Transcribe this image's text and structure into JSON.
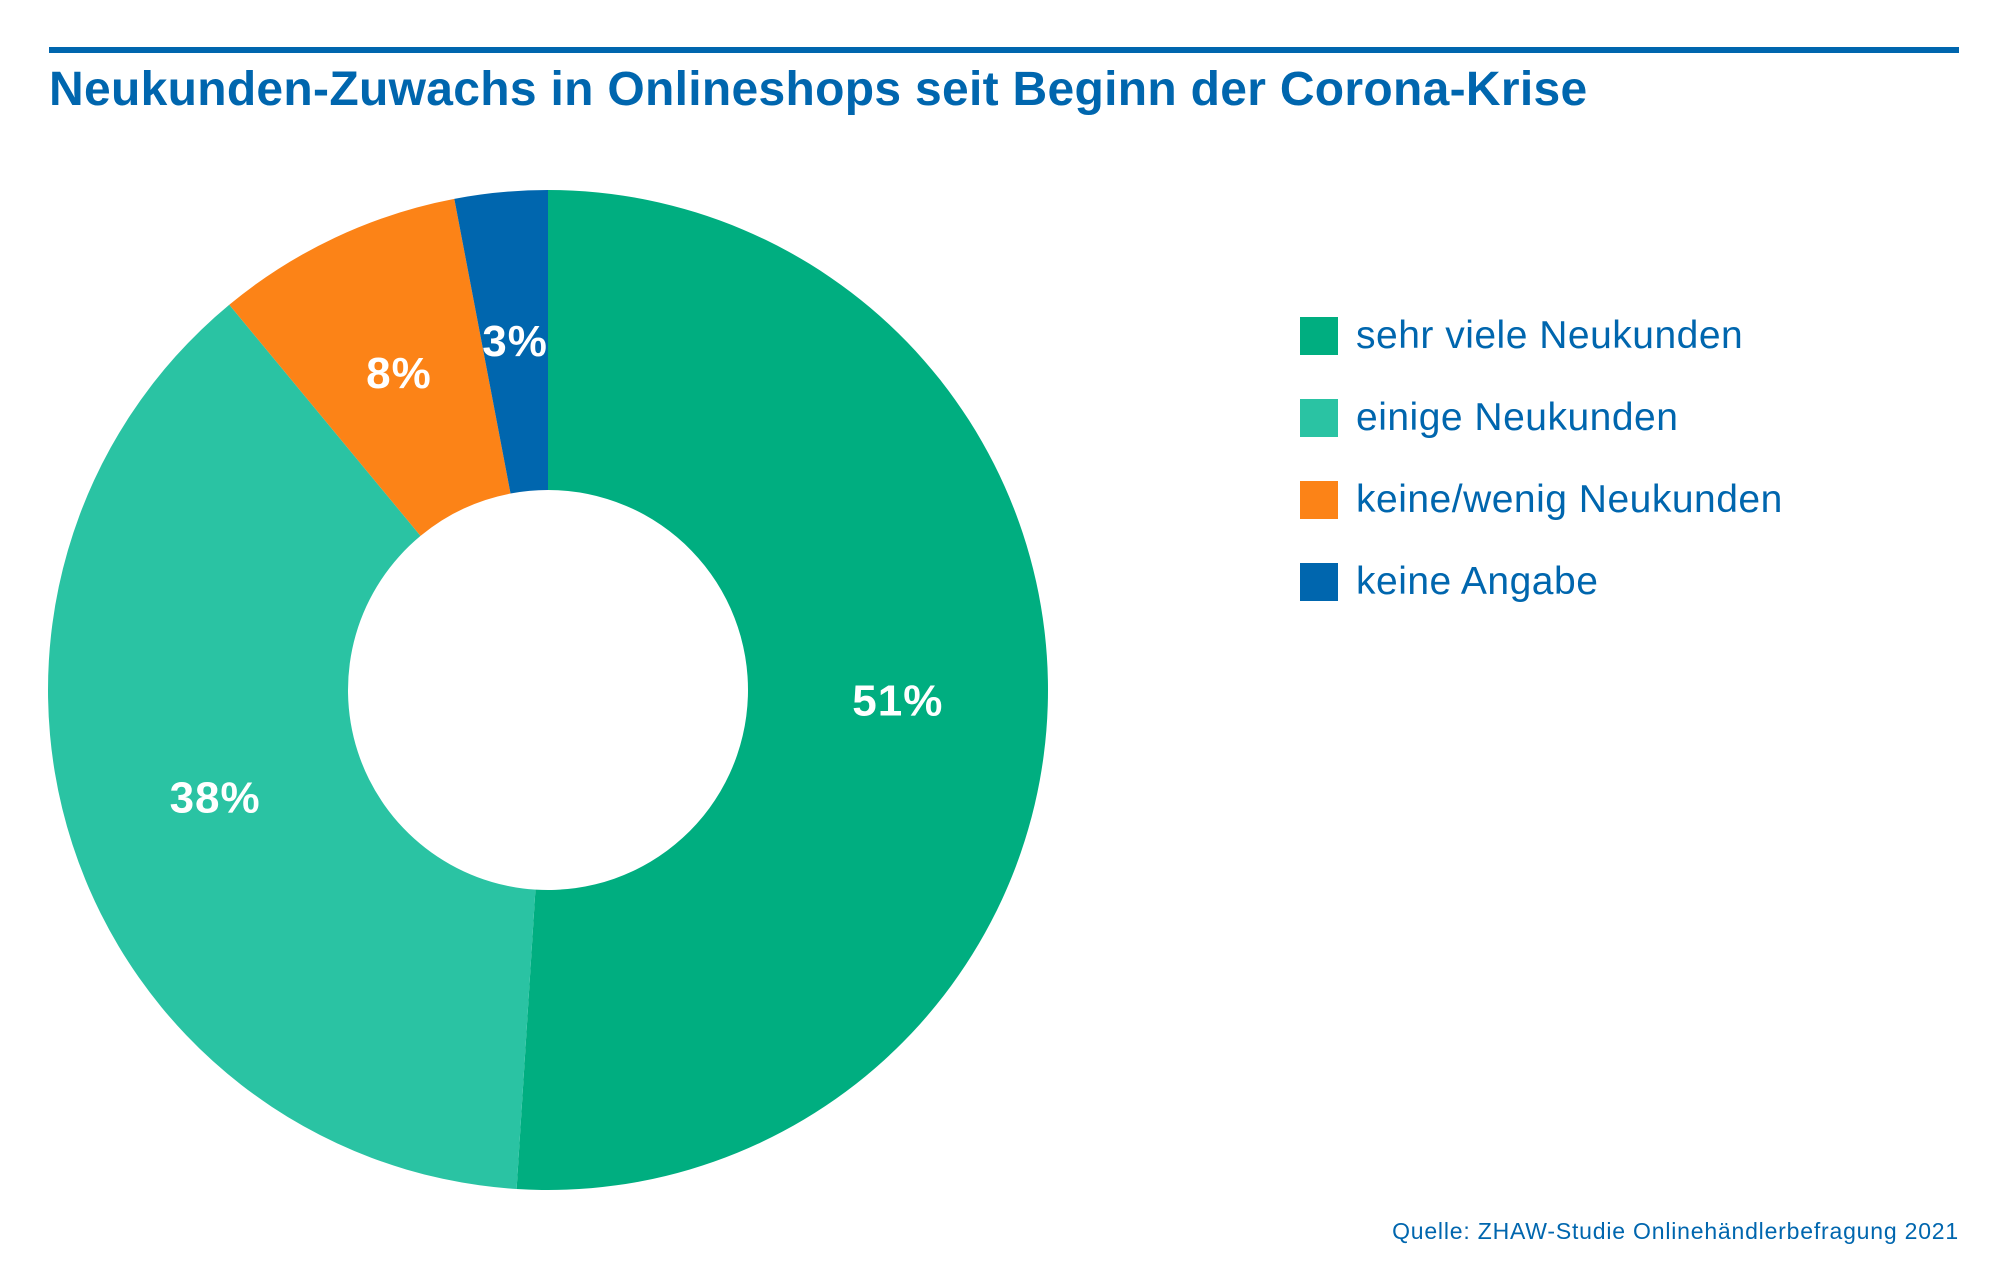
{
  "title": "Neukunden-Zuwachs in Onlineshops seit Beginn der Corona-Krise",
  "source": "Quelle: ZHAW-Studie Onlinehändlerbefragung 2021",
  "chart_data": {
    "type": "pie",
    "title": "Neukunden-Zuwachs in Onlineshops seit Beginn der Corona-Krise",
    "style": "donut",
    "start": "12 o'clock",
    "direction": "clockwise",
    "legend_position": "right",
    "categories": [
      "sehr viele Neukunden",
      "einige Neukunden",
      "keine/wenig Neukunden",
      "keine Angabe"
    ],
    "values": [
      51,
      38,
      8,
      3
    ],
    "labels": [
      "51%",
      "38%",
      "8%",
      "3%"
    ],
    "colors": [
      "#00AE80",
      "#2AC3A3",
      "#FC8317",
      "#0066AE"
    ]
  }
}
